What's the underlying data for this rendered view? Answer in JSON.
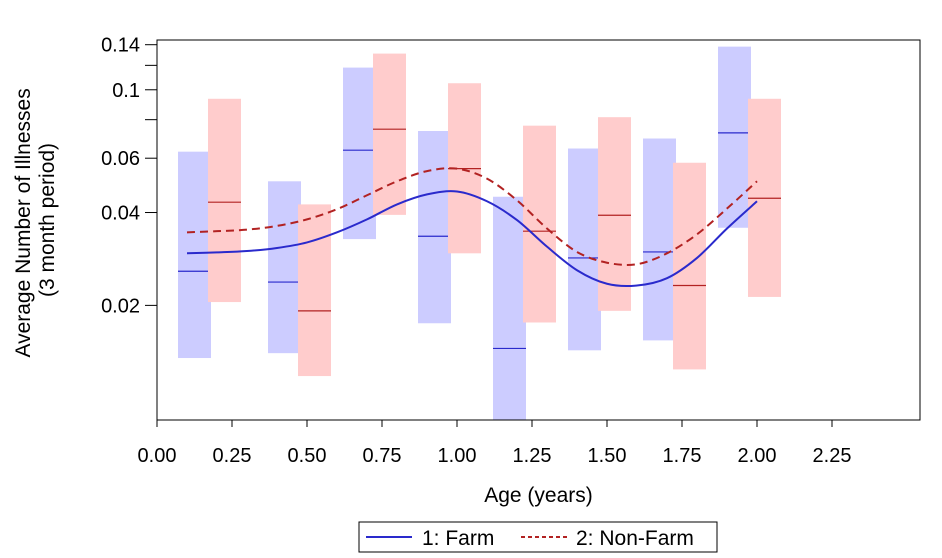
{
  "chart_data": {
    "type": "line",
    "title": "",
    "xlabel": "Age (years)",
    "ylabel": [
      "Average Number of Illnesses",
      "(3 month period)"
    ],
    "xlim": [
      0,
      2.25
    ],
    "ylim": [
      0.0085,
      0.145
    ],
    "yscale": "log",
    "x_ticks": [
      "0.00",
      "0.25",
      "0.50",
      "0.75",
      "1.00",
      "1.25",
      "1.50",
      "1.75",
      "2.00",
      "2.25"
    ],
    "y_tick_labels": [
      {
        "value": 0.02,
        "label": "0.02"
      },
      {
        "value": 0.04,
        "label": "0.04"
      },
      {
        "value": 0.06,
        "label": "0.06"
      },
      {
        "value": 0.1,
        "label": "0.1"
      },
      {
        "value": 0.14,
        "label": "0.14"
      }
    ],
    "y_minor_ticks": [
      0.08,
      0.12
    ],
    "grid": false,
    "legend_position": "bottom",
    "series": [
      {
        "name": "1: Farm",
        "color": "#2a2acc",
        "line_style": "solid",
        "band_color": "#ccccff",
        "curve": {
          "x": [
            0.1,
            0.2,
            0.3,
            0.4,
            0.5,
            0.6,
            0.7,
            0.8,
            0.9,
            1.0,
            1.1,
            1.2,
            1.3,
            1.4,
            1.5,
            1.6,
            1.7,
            1.8,
            1.9,
            2.0
          ],
          "y": [
            0.0295,
            0.0297,
            0.03,
            0.0307,
            0.032,
            0.0345,
            0.038,
            0.0425,
            0.0458,
            0.0468,
            0.0435,
            0.0378,
            0.031,
            0.026,
            0.0235,
            0.0232,
            0.0245,
            0.0285,
            0.0355,
            0.0435
          ]
        },
        "intervals": [
          {
            "x": 0.125,
            "mean": 0.0258,
            "low": 0.0135,
            "high": 0.063
          },
          {
            "x": 0.425,
            "mean": 0.0238,
            "low": 0.014,
            "high": 0.0505
          },
          {
            "x": 0.675,
            "mean": 0.0637,
            "low": 0.0328,
            "high": 0.118
          },
          {
            "x": 0.925,
            "mean": 0.0335,
            "low": 0.0175,
            "high": 0.0735
          },
          {
            "x": 1.175,
            "mean": 0.0145,
            "low": 0.0085,
            "high": 0.045
          },
          {
            "x": 1.425,
            "mean": 0.0285,
            "low": 0.0143,
            "high": 0.0645
          },
          {
            "x": 1.675,
            "mean": 0.0298,
            "low": 0.0154,
            "high": 0.0695
          },
          {
            "x": 1.925,
            "mean": 0.0725,
            "low": 0.0357,
            "high": 0.138
          }
        ]
      },
      {
        "name": "2: Non-Farm",
        "color": "#b22222",
        "line_style": "dashed",
        "band_color": "#ffcccc",
        "curve": {
          "x": [
            0.1,
            0.2,
            0.3,
            0.4,
            0.5,
            0.6,
            0.7,
            0.8,
            0.9,
            1.0,
            1.1,
            1.2,
            1.3,
            1.4,
            1.5,
            1.6,
            1.7,
            1.8,
            1.9,
            2.0
          ],
          "y": [
            0.0345,
            0.0348,
            0.0352,
            0.0362,
            0.038,
            0.041,
            0.0455,
            0.0505,
            0.0545,
            0.0555,
            0.0515,
            0.0438,
            0.0355,
            0.0298,
            0.0275,
            0.0272,
            0.0295,
            0.034,
            0.0412,
            0.0505
          ]
        },
        "intervals": [
          {
            "x": 0.225,
            "mean": 0.0432,
            "low": 0.0205,
            "high": 0.0935
          },
          {
            "x": 0.525,
            "mean": 0.0192,
            "low": 0.0118,
            "high": 0.0425
          },
          {
            "x": 0.775,
            "mean": 0.0745,
            "low": 0.0393,
            "high": 0.131
          },
          {
            "x": 1.025,
            "mean": 0.0555,
            "low": 0.0295,
            "high": 0.105
          },
          {
            "x": 1.275,
            "mean": 0.0348,
            "low": 0.0176,
            "high": 0.0765
          },
          {
            "x": 1.525,
            "mean": 0.0392,
            "low": 0.0192,
            "high": 0.0815
          },
          {
            "x": 1.775,
            "mean": 0.0232,
            "low": 0.0124,
            "high": 0.058
          },
          {
            "x": 2.025,
            "mean": 0.0445,
            "low": 0.0213,
            "high": 0.0935
          }
        ]
      }
    ]
  },
  "legend": {
    "items": [
      {
        "label": "1: Farm",
        "color": "#2a2acc",
        "line_style": "solid"
      },
      {
        "label": "2: Non-Farm",
        "color": "#b22222",
        "line_style": "dashed"
      }
    ]
  }
}
